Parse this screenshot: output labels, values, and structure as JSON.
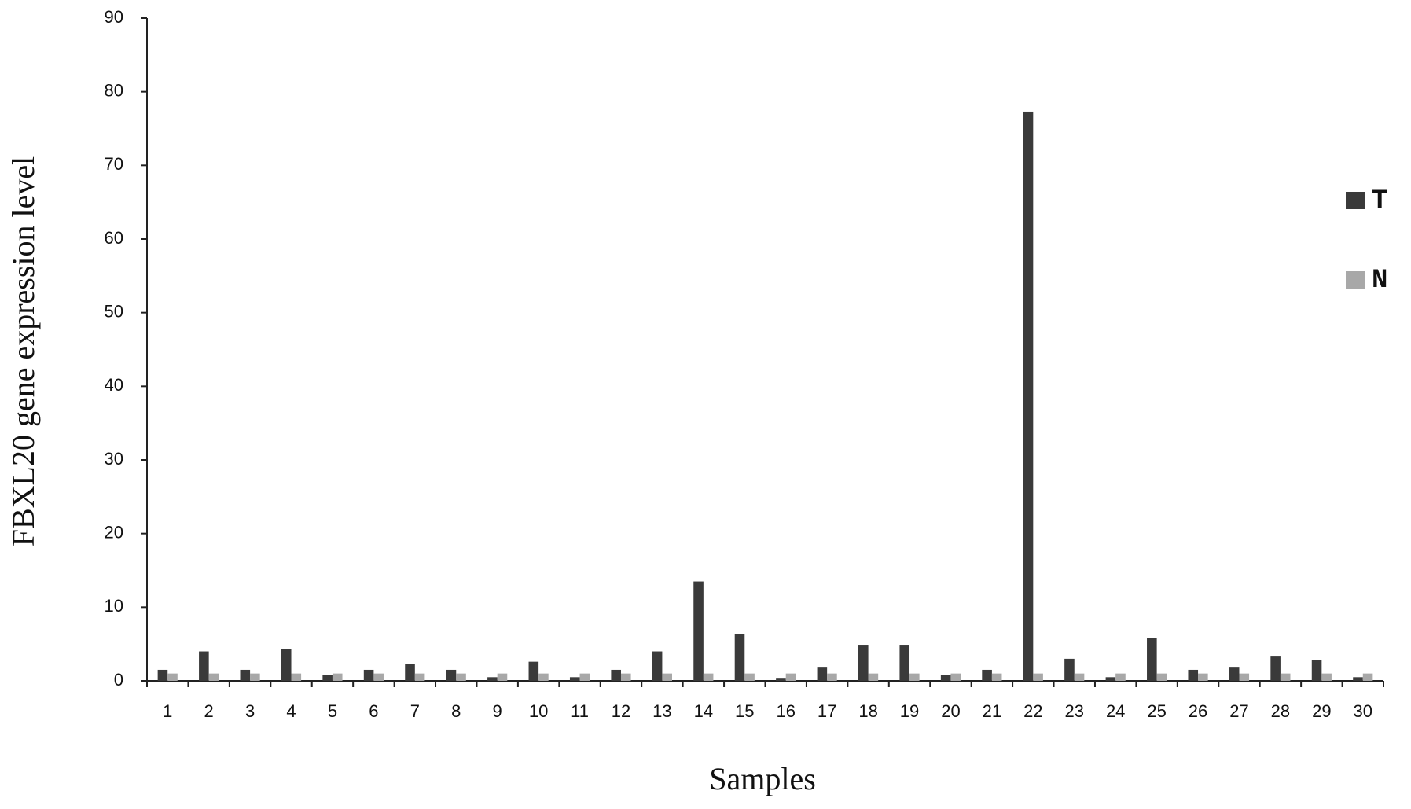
{
  "chart_data": {
    "type": "bar",
    "x_label": "Samples",
    "y_label": "FBXL20 gene expression level",
    "categories": [
      "1",
      "2",
      "3",
      "4",
      "5",
      "6",
      "7",
      "8",
      "9",
      "10",
      "11",
      "12",
      "13",
      "14",
      "15",
      "16",
      "17",
      "18",
      "19",
      "20",
      "21",
      "22",
      "23",
      "24",
      "25",
      "26",
      "27",
      "28",
      "29",
      "30"
    ],
    "series": [
      {
        "name": "T",
        "color": "#3a3a3a",
        "values": [
          1.5,
          4,
          1.5,
          4.3,
          0.8,
          1.5,
          2.3,
          1.5,
          0.5,
          2.6,
          0.5,
          1.5,
          4,
          13.5,
          6.3,
          0.3,
          1.8,
          4.8,
          4.8,
          0.8,
          1.5,
          77.3,
          3,
          0.5,
          5.8,
          1.5,
          1.8,
          3.3,
          2.8,
          0.5
        ]
      },
      {
        "name": "N",
        "color": "#a8a8a8",
        "values": [
          1,
          1,
          1,
          1,
          1,
          1,
          1,
          1,
          1,
          1,
          1,
          1,
          1,
          1,
          1,
          1,
          1,
          1,
          1,
          1,
          1,
          1,
          1,
          1,
          1,
          1,
          1,
          1,
          1,
          1
        ]
      }
    ],
    "ylim": [
      0,
      90
    ],
    "yticks": [
      0,
      10,
      20,
      30,
      40,
      50,
      60,
      70,
      80,
      90
    ],
    "legend": "right"
  }
}
